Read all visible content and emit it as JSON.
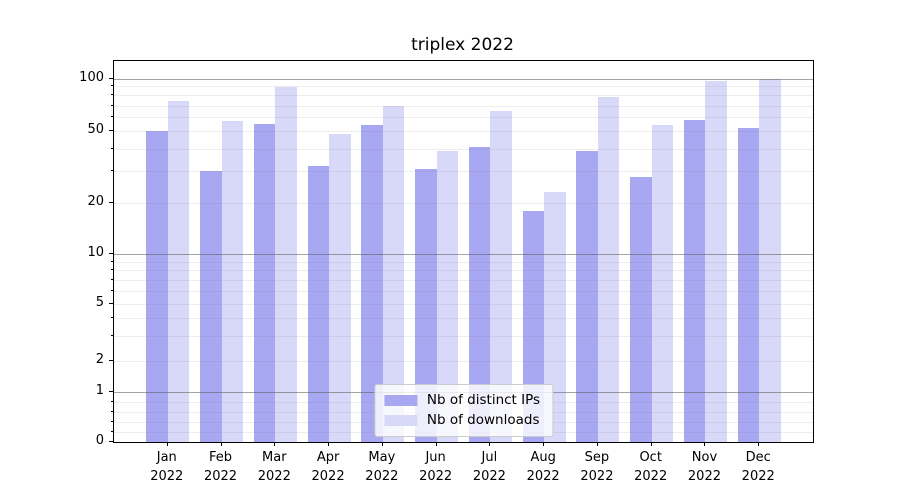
{
  "chart_data": {
    "type": "bar",
    "title": "triplex 2022",
    "categories": [
      "Jan",
      "Feb",
      "Mar",
      "Apr",
      "May",
      "Jun",
      "Jul",
      "Aug",
      "Sep",
      "Oct",
      "Nov",
      "Dec"
    ],
    "category_year": "2022",
    "series": [
      {
        "name": "Nb of distinct IPs",
        "color": "#a8a8f2",
        "values": [
          50,
          30,
          55,
          32,
          54,
          31,
          41,
          18,
          39,
          28,
          58,
          52
        ]
      },
      {
        "name": "Nb of downloads",
        "color": "#d8d8f8",
        "values": [
          74,
          57,
          89,
          48,
          70,
          39,
          65,
          23,
          78,
          54,
          97,
          99
        ]
      }
    ],
    "yscale": "symlog",
    "ylim": [
      0,
      126
    ],
    "xlabel": "",
    "ylabel": "",
    "y_axis_ticks": [
      {
        "value": 100,
        "label": "100"
      },
      {
        "value": 50,
        "label": "50"
      },
      {
        "value": 20,
        "label": "20"
      },
      {
        "value": 10,
        "label": "10"
      },
      {
        "value": 5,
        "label": "5"
      },
      {
        "value": 2,
        "label": "2"
      },
      {
        "value": 1,
        "label": "1"
      },
      {
        "value": 0,
        "label": "0"
      }
    ],
    "major_grid_values": [
      100,
      10,
      1
    ],
    "minor_grid_values": [
      90,
      80,
      70,
      60,
      50,
      40,
      30,
      20,
      9,
      8,
      7,
      6,
      5,
      4,
      3,
      2,
      0.8,
      0.6,
      0.4,
      0.2
    ],
    "grid": true,
    "legend_position": "lower center"
  }
}
